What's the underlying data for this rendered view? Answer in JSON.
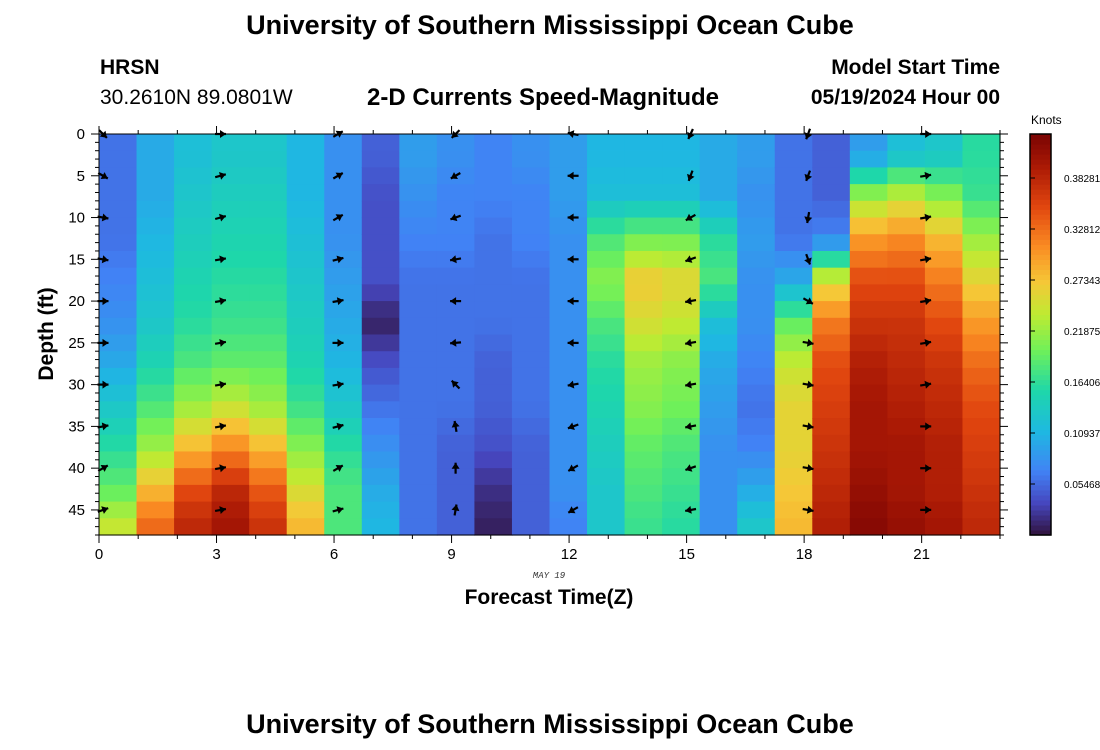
{
  "header": {
    "title": "University of Southern Mississippi Ocean Cube",
    "station": "HRSN",
    "coords": "30.2610N  89.0801W",
    "plot_title": "2-D Currents Speed-Magnitude",
    "start_label": "Model Start Time",
    "start_value": "05/19/2024 Hour 00"
  },
  "footer": {
    "title": "University of Southern Mississippi Ocean Cube"
  },
  "chart_data": {
    "type": "heatmap",
    "title": "2-D Currents Speed-Magnitude",
    "xlabel": "Forecast Time(Z)",
    "ylabel": "Depth (ft)",
    "date_label": "MAY 19",
    "xlim": [
      0,
      23
    ],
    "ylim": [
      48,
      0
    ],
    "x_ticks": [
      0,
      3,
      6,
      9,
      12,
      15,
      18,
      21
    ],
    "y_ticks": [
      0,
      5,
      10,
      15,
      20,
      25,
      30,
      35,
      40,
      45
    ],
    "colorbar": {
      "label": "Knots",
      "ticks": [
        "0.05468",
        "0.10937",
        "0.16406",
        "0.21875",
        "0.27343",
        "0.32812",
        "0.38281"
      ],
      "range": [
        0.0,
        0.43
      ]
    },
    "speed_profiles_knots": [
      {
        "hour": 0,
        "values": [
          0.06,
          0.06,
          0.06,
          0.07,
          0.08,
          0.1,
          0.13,
          0.16,
          0.19,
          0.24
        ]
      },
      {
        "hour": 1,
        "values": [
          0.1,
          0.1,
          0.11,
          0.12,
          0.13,
          0.15,
          0.18,
          0.22,
          0.28,
          0.33
        ]
      },
      {
        "hour": 2,
        "values": [
          0.12,
          0.13,
          0.14,
          0.15,
          0.16,
          0.18,
          0.22,
          0.28,
          0.35,
          0.38
        ]
      },
      {
        "hour": 3,
        "values": [
          0.13,
          0.14,
          0.15,
          0.16,
          0.17,
          0.19,
          0.24,
          0.31,
          0.38,
          0.4
        ]
      },
      {
        "hour": 4,
        "values": [
          0.13,
          0.14,
          0.15,
          0.16,
          0.17,
          0.19,
          0.22,
          0.28,
          0.34,
          0.37
        ]
      },
      {
        "hour": 5,
        "values": [
          0.11,
          0.11,
          0.12,
          0.13,
          0.14,
          0.15,
          0.17,
          0.21,
          0.25,
          0.28
        ]
      },
      {
        "hour": 6,
        "values": [
          0.08,
          0.08,
          0.08,
          0.09,
          0.1,
          0.11,
          0.13,
          0.16,
          0.18,
          0.18
        ]
      },
      {
        "hour": 7,
        "values": [
          0.05,
          0.04,
          0.04,
          0.04,
          0.01,
          0.04,
          0.06,
          0.08,
          0.1,
          0.11
        ]
      },
      {
        "hour": 8,
        "values": [
          0.09,
          0.08,
          0.07,
          0.06,
          0.06,
          0.06,
          0.06,
          0.06,
          0.06,
          0.06
        ]
      },
      {
        "hour": 9,
        "values": [
          0.08,
          0.07,
          0.07,
          0.06,
          0.06,
          0.06,
          0.06,
          0.05,
          0.05,
          0.05
        ]
      },
      {
        "hour": 10,
        "values": [
          0.07,
          0.07,
          0.06,
          0.06,
          0.06,
          0.05,
          0.05,
          0.04,
          0.02,
          0.01
        ]
      },
      {
        "hour": 11,
        "values": [
          0.08,
          0.07,
          0.07,
          0.06,
          0.06,
          0.06,
          0.06,
          0.05,
          0.05,
          0.05
        ]
      },
      {
        "hour": 12,
        "values": [
          0.09,
          0.09,
          0.08,
          0.08,
          0.08,
          0.08,
          0.08,
          0.08,
          0.08,
          0.07
        ]
      },
      {
        "hour": 13,
        "values": [
          0.11,
          0.12,
          0.18,
          0.21,
          0.18,
          0.16,
          0.15,
          0.14,
          0.13,
          0.13
        ]
      },
      {
        "hour": 14,
        "values": [
          0.11,
          0.12,
          0.2,
          0.27,
          0.25,
          0.22,
          0.21,
          0.19,
          0.18,
          0.17
        ]
      },
      {
        "hour": 15,
        "values": [
          0.11,
          0.12,
          0.2,
          0.26,
          0.24,
          0.21,
          0.2,
          0.18,
          0.17,
          0.16
        ]
      },
      {
        "hour": 16,
        "values": [
          0.1,
          0.1,
          0.16,
          0.18,
          0.12,
          0.1,
          0.09,
          0.08,
          0.08,
          0.08
        ]
      },
      {
        "hour": 17,
        "values": [
          0.09,
          0.08,
          0.09,
          0.08,
          0.08,
          0.07,
          0.06,
          0.07,
          0.1,
          0.13
        ]
      },
      {
        "hour": 18,
        "values": [
          0.06,
          0.06,
          0.06,
          0.1,
          0.19,
          0.24,
          0.26,
          0.26,
          0.27,
          0.28
        ]
      },
      {
        "hour": 19,
        "values": [
          0.05,
          0.05,
          0.07,
          0.25,
          0.32,
          0.35,
          0.36,
          0.37,
          0.38,
          0.39
        ]
      },
      {
        "hour": 20,
        "values": [
          0.09,
          0.22,
          0.3,
          0.35,
          0.37,
          0.39,
          0.4,
          0.4,
          0.41,
          0.42
        ]
      },
      {
        "hour": 21,
        "values": [
          0.12,
          0.24,
          0.31,
          0.35,
          0.37,
          0.38,
          0.39,
          0.4,
          0.4,
          0.41
        ]
      },
      {
        "hour": 22,
        "values": [
          0.13,
          0.21,
          0.28,
          0.32,
          0.35,
          0.37,
          0.38,
          0.39,
          0.39,
          0.4
        ]
      },
      {
        "hour": 23,
        "values": [
          0.16,
          0.17,
          0.22,
          0.26,
          0.3,
          0.33,
          0.35,
          0.36,
          0.37,
          0.38
        ]
      }
    ],
    "vector_hours": [
      0,
      3,
      6,
      9,
      12,
      15,
      18,
      21
    ],
    "vector_directions_deg": [
      [
        135,
        120,
        100,
        100,
        90,
        90,
        90,
        80,
        60,
        70
      ],
      [
        90,
        75,
        75,
        80,
        80,
        80,
        80,
        80,
        80,
        80
      ],
      [
        60,
        60,
        60,
        75,
        80,
        90,
        80,
        75,
        60,
        75
      ],
      [
        -135,
        -120,
        -110,
        -100,
        -90,
        -95,
        -45,
        -10,
        0,
        10
      ],
      [
        -80,
        -90,
        -90,
        -90,
        -90,
        -90,
        -100,
        -110,
        -120,
        -120
      ],
      [
        -155,
        -160,
        -120,
        -110,
        -100,
        -100,
        -100,
        -100,
        -110,
        -100
      ],
      [
        -160,
        -160,
        -170,
        160,
        120,
        100,
        100,
        100,
        100,
        100
      ],
      [
        90,
        80,
        80,
        80,
        80,
        80,
        80,
        90,
        90,
        90
      ]
    ]
  }
}
